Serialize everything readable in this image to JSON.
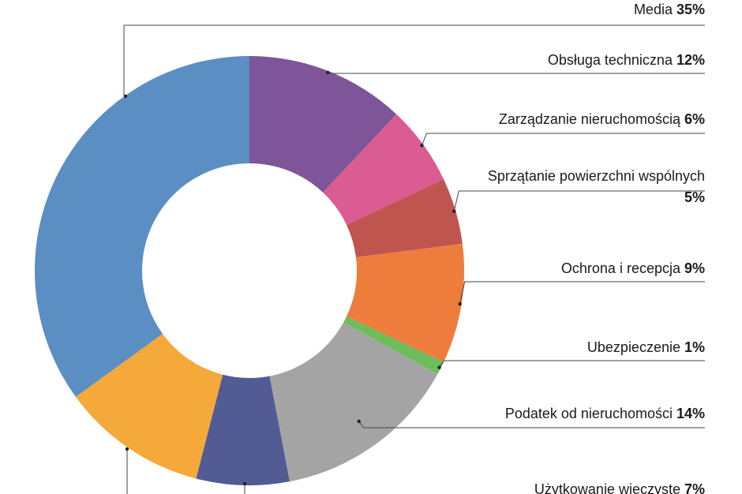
{
  "chart_data": {
    "type": "pie",
    "variant": "donut",
    "slices": [
      {
        "label": "Obsługa techniczna",
        "pct_text": "12%",
        "value": 12,
        "color": "#7E5599"
      },
      {
        "label": "Zarządzanie nieruchomością",
        "pct_text": "6%",
        "value": 6,
        "color": "#DB5B93"
      },
      {
        "label": "Sprzątanie powierzchni wspólnych",
        "pct_text": "5%",
        "value": 5,
        "color": "#C0544F"
      },
      {
        "label": "Ochrona i recepcja",
        "pct_text": "9%",
        "value": 9,
        "color": "#EE7C3C"
      },
      {
        "label": "Ubezpieczenie",
        "pct_text": "1%",
        "value": 1,
        "color": "#6DBE5A"
      },
      {
        "label": "Podatek od nieruchomości",
        "pct_text": "14%",
        "value": 14,
        "color": "#A4A4A4"
      },
      {
        "label": "Użytkowanie wieczyste",
        "pct_text": "7%",
        "value": 7,
        "color": "#525B94"
      },
      {
        "label": "",
        "pct_text": "",
        "value": 11,
        "color": "#F4A93A"
      },
      {
        "label": "Media",
        "pct_text": "35%",
        "value": 35,
        "color": "#5B8EC3"
      }
    ],
    "legend": "none",
    "labels_placement": "right"
  }
}
